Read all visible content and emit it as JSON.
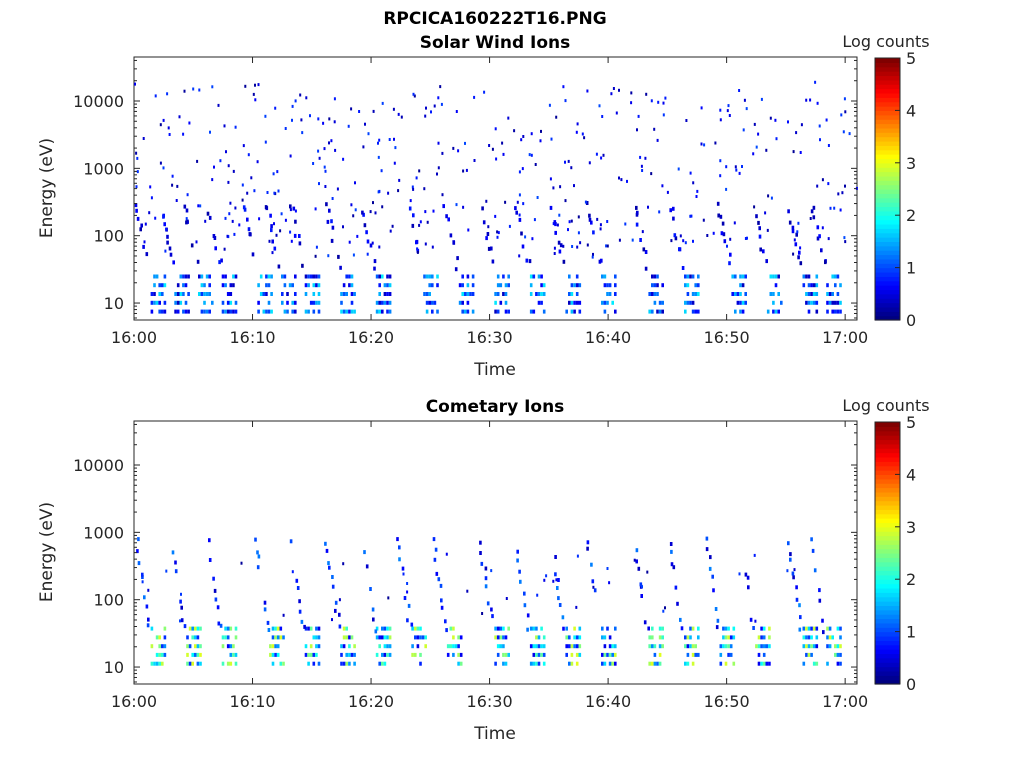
{
  "figure": {
    "title": "RPCICA160222T16.PNG"
  },
  "colorscale": {
    "label": "Log counts",
    "ticks": [
      "0",
      "1",
      "2",
      "3",
      "4",
      "5"
    ],
    "range": [
      0,
      5
    ]
  },
  "chart_data": [
    {
      "type": "heatmap",
      "title": "Solar Wind Ions",
      "xlabel": "Time",
      "ylabel": "Energy (eV)",
      "x_ticks": [
        "16:00",
        "16:10",
        "16:20",
        "16:30",
        "16:40",
        "16:50",
        "17:00"
      ],
      "y_ticks": [
        "10",
        "100",
        "1000",
        "10000"
      ],
      "y_scale": "log",
      "xlim": [
        "16:00",
        "17:01"
      ],
      "ylim": [
        5.6,
        45000
      ],
      "colorbar": "Log counts, 0-5",
      "description_data": {
        "low_energy_band_eV": [
          8,
          35
        ],
        "pulse_times": [
          "16:02",
          "16:04",
          "16:06",
          "16:08",
          "16:11",
          "16:13",
          "16:15",
          "16:18",
          "16:21",
          "16:25",
          "16:28",
          "16:31",
          "16:34",
          "16:37",
          "16:40",
          "16:44",
          "16:47",
          "16:51",
          "16:54",
          "16:57",
          "16:59"
        ],
        "typical_log_counts": [
          0.3,
          1.8
        ]
      }
    },
    {
      "type": "heatmap",
      "title": "Cometary Ions",
      "xlabel": "Time",
      "ylabel": "Energy (eV)",
      "x_ticks": [
        "16:00",
        "16:10",
        "16:20",
        "16:30",
        "16:40",
        "16:50",
        "17:00"
      ],
      "y_ticks": [
        "10",
        "100",
        "1000",
        "10000"
      ],
      "y_scale": "log",
      "xlim": [
        "16:00",
        "17:01"
      ],
      "ylim": [
        5.6,
        45000
      ],
      "colorbar": "Log counts, 0-5",
      "description_data": {
        "low_energy_band_eV": [
          12,
          45
        ],
        "pulse_times": [
          "16:02",
          "16:05",
          "16:08",
          "16:12",
          "16:15",
          "16:18",
          "16:21",
          "16:24",
          "16:27",
          "16:31",
          "16:34",
          "16:37",
          "16:40",
          "16:44",
          "16:47",
          "16:50",
          "16:53",
          "16:57",
          "16:59"
        ],
        "typical_log_counts": [
          0.5,
          3.0
        ]
      }
    }
  ]
}
